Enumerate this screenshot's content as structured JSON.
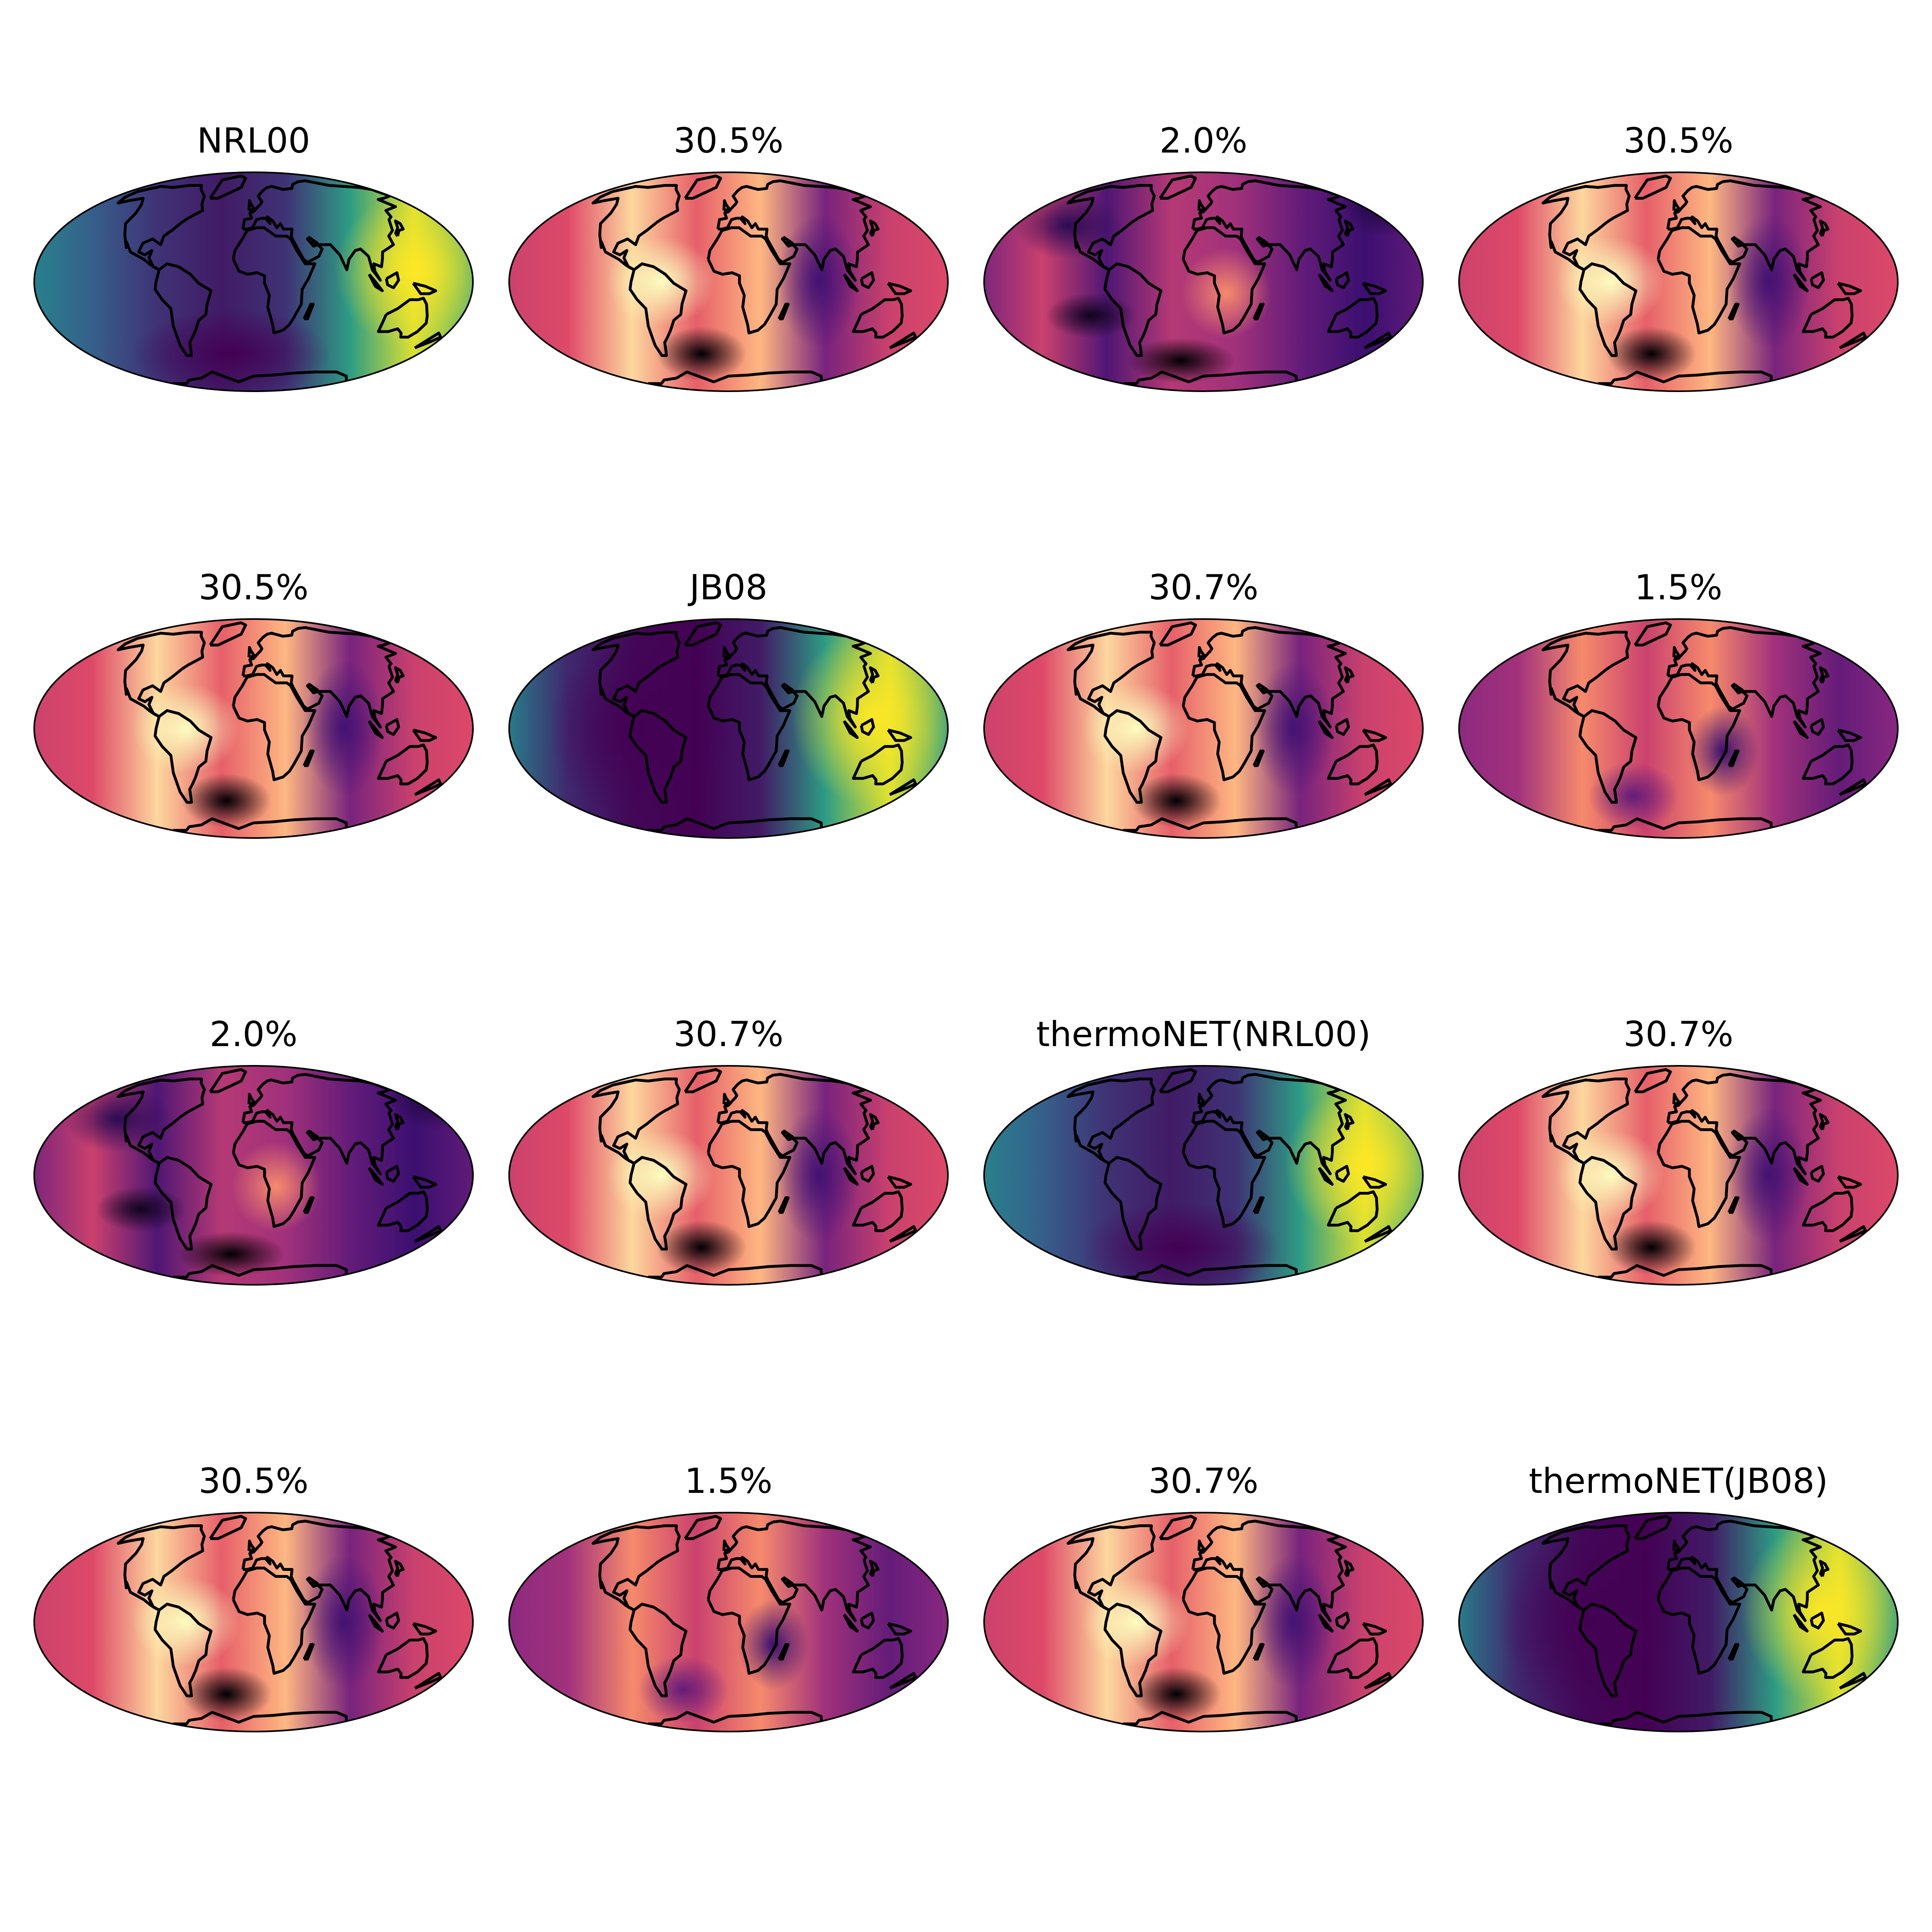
{
  "figure": {
    "panels": [
      {
        "title": "NRL00",
        "palette": "viridis",
        "variant": "nrl"
      },
      {
        "title": "30.5%",
        "palette": "magma",
        "variant": "ratio-a"
      },
      {
        "title": "2.0%",
        "palette": "magma",
        "variant": "ratio-b"
      },
      {
        "title": "30.5%",
        "palette": "magma",
        "variant": "ratio-a"
      },
      {
        "title": "30.5%",
        "palette": "magma",
        "variant": "ratio-a"
      },
      {
        "title": "JB08",
        "palette": "viridis",
        "variant": "jb"
      },
      {
        "title": "30.7%",
        "palette": "magma",
        "variant": "ratio-c"
      },
      {
        "title": "1.5%",
        "palette": "magma",
        "variant": "ratio-d"
      },
      {
        "title": "2.0%",
        "palette": "magma",
        "variant": "ratio-b"
      },
      {
        "title": "30.7%",
        "palette": "magma",
        "variant": "ratio-c"
      },
      {
        "title": "thermoNET(NRL00)",
        "palette": "viridis",
        "variant": "nrl"
      },
      {
        "title": "30.7%",
        "palette": "magma",
        "variant": "ratio-c"
      },
      {
        "title": "30.5%",
        "palette": "magma",
        "variant": "ratio-a"
      },
      {
        "title": "1.5%",
        "palette": "magma",
        "variant": "ratio-d"
      },
      {
        "title": "30.7%",
        "palette": "magma",
        "variant": "ratio-c"
      },
      {
        "title": "thermoNET(JB08)",
        "palette": "viridis",
        "variant": "jb"
      }
    ],
    "coastline_color": "#000000",
    "palettes": {
      "viridis": [
        "#440154",
        "#3b528b",
        "#21918c",
        "#5ec962",
        "#fde725"
      ],
      "magma": [
        "#000004",
        "#3b0f70",
        "#8c2981",
        "#de4968",
        "#fe9f6d",
        "#fcfdbf"
      ]
    }
  }
}
